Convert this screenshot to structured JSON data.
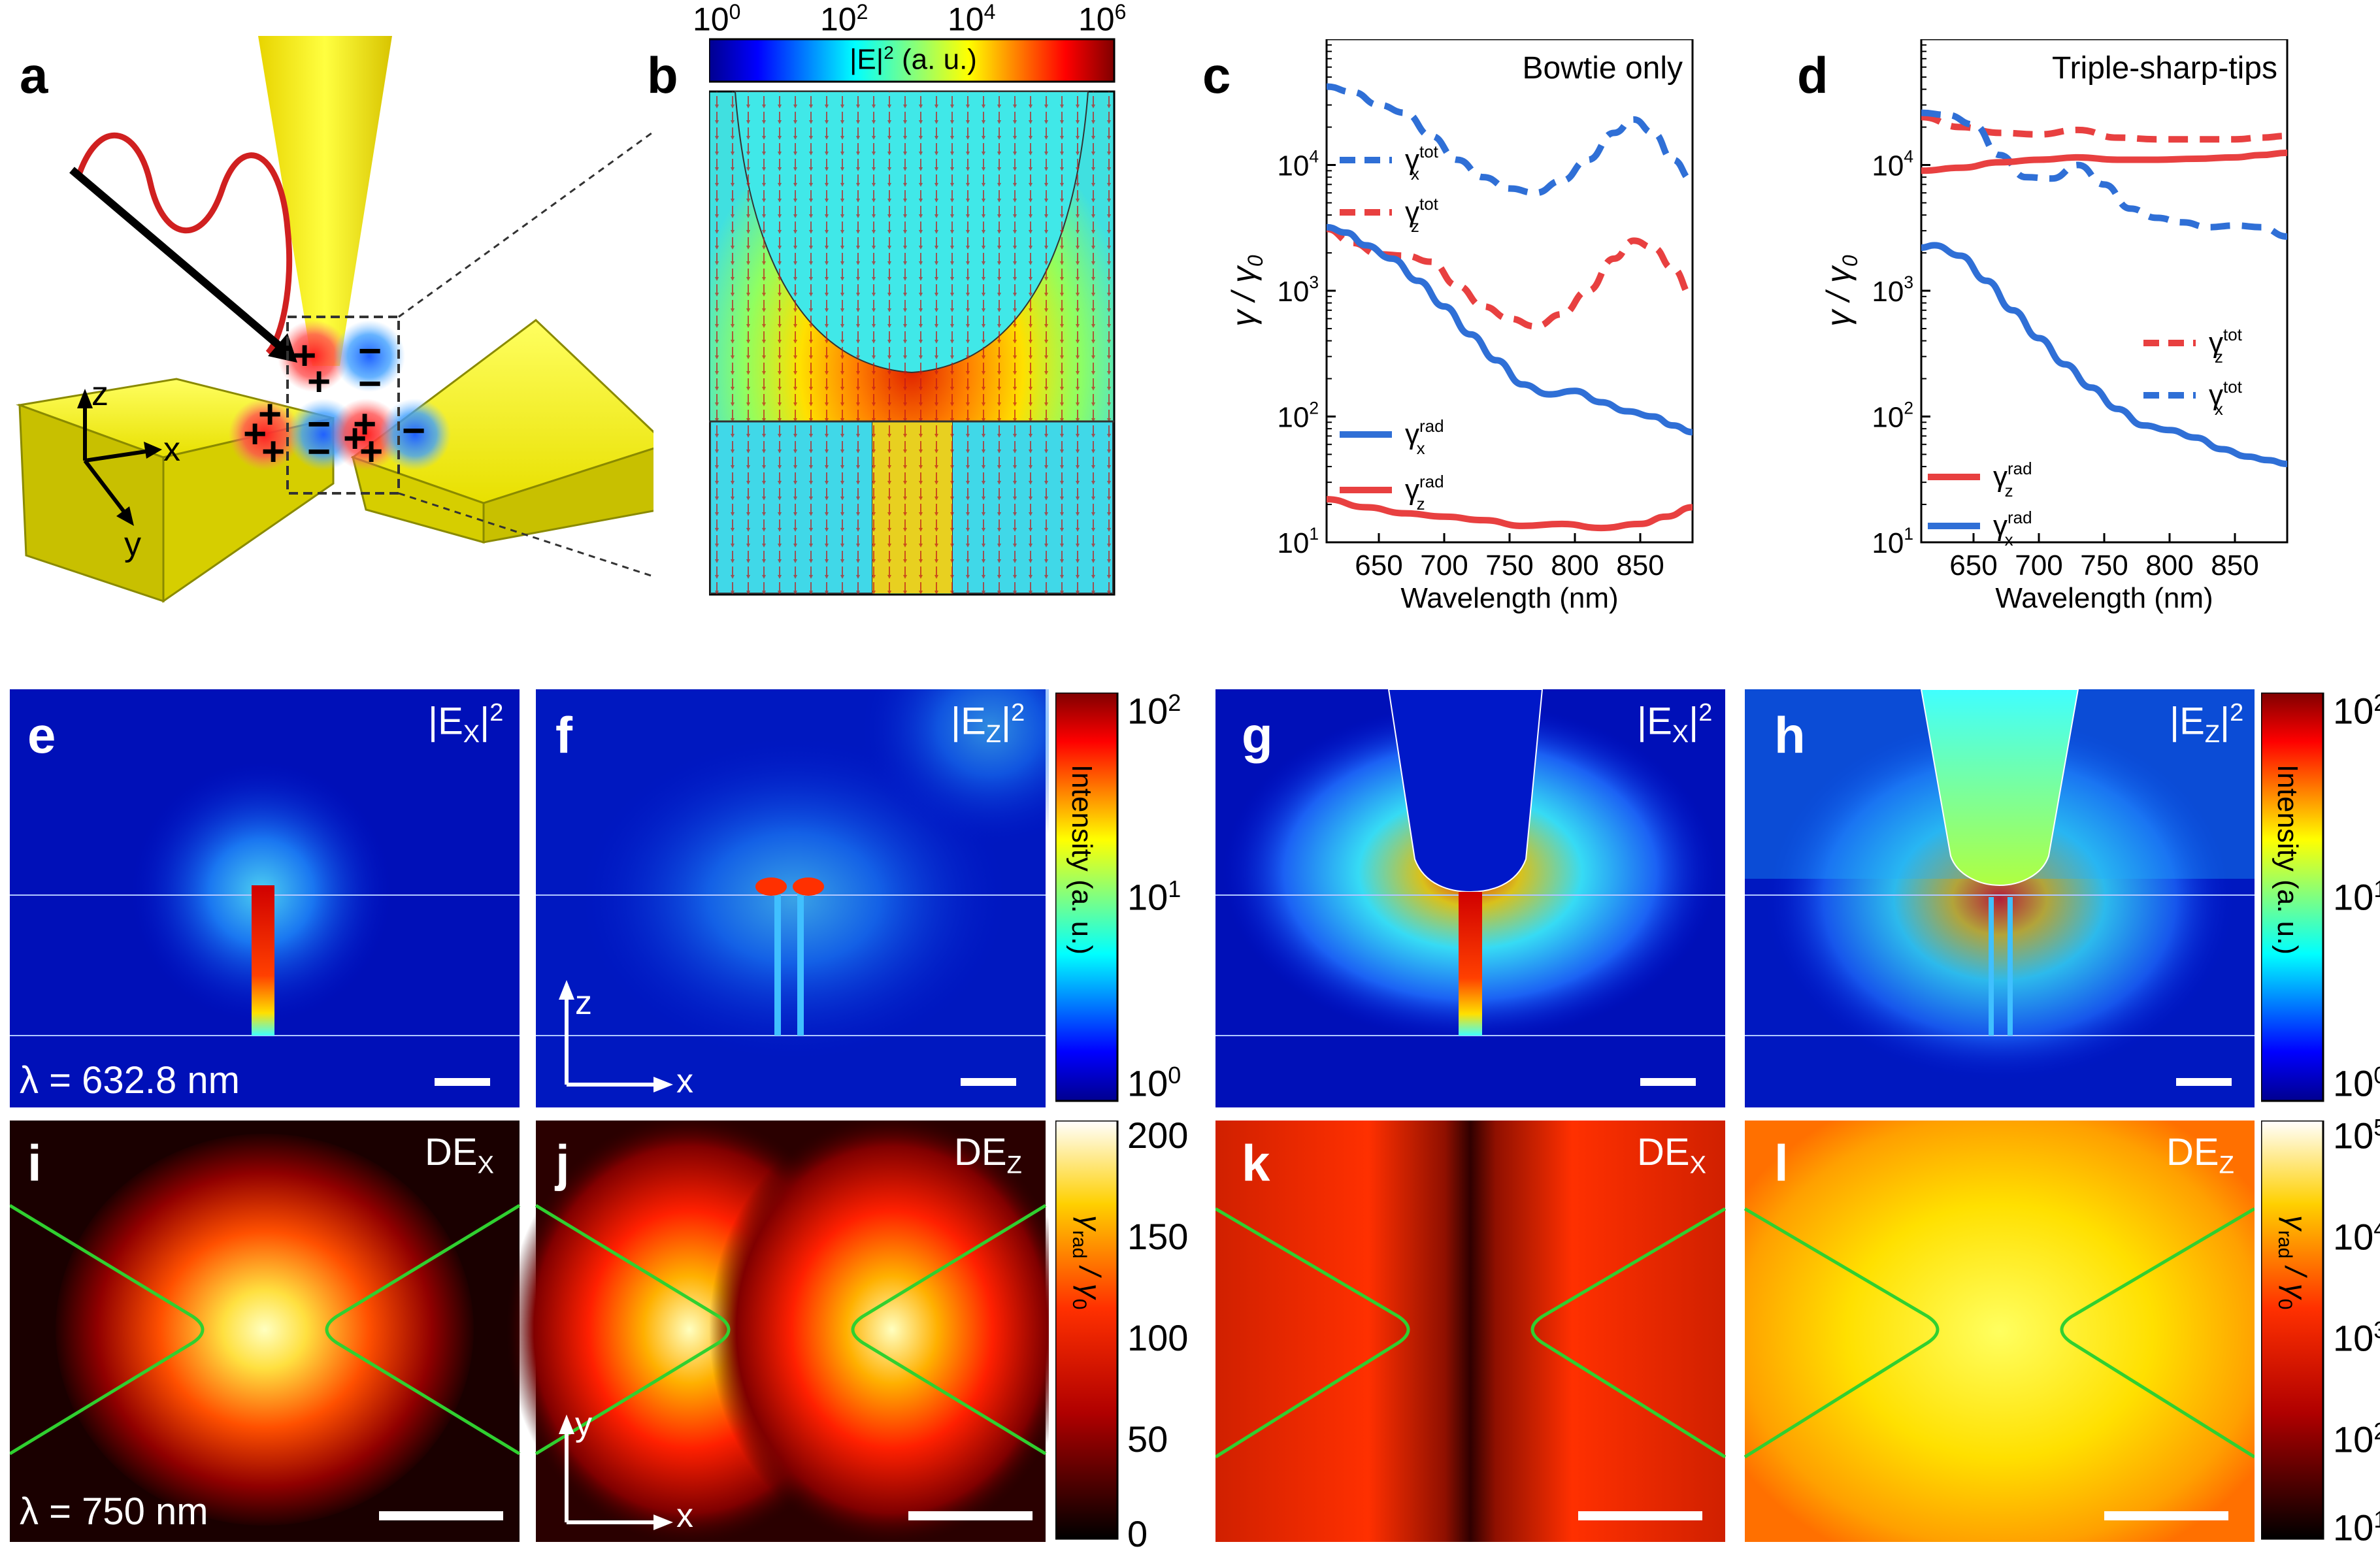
{
  "figure": {
    "panel_labels": {
      "a": "a",
      "b": "b",
      "c": "c",
      "d": "d",
      "e": "e",
      "f": "f",
      "g": "g",
      "h": "h",
      "i": "i",
      "j": "j",
      "k": "k",
      "l": "l"
    }
  },
  "panel_a": {
    "axis_z": "z",
    "axis_x": "x",
    "axis_y": "y",
    "plus": "+",
    "minus": "−"
  },
  "panel_b": {
    "cbar_ticks": [
      "10",
      "10",
      "10",
      "10"
    ],
    "cbar_exps": [
      "0",
      "2",
      "4",
      "6"
    ],
    "cbar_label": "|E|",
    "cbar_label_exp": "2",
    "cbar_label_unit": " (a. u.)"
  },
  "panel_c": {
    "title": "Bowtie only",
    "ylabel": "γ / γ",
    "ylabel_sub": "0",
    "xlabel": "Wavelength (nm)",
    "legend": {
      "x_tot": "γ",
      "z_tot": "γ",
      "x_rad": "γ",
      "z_rad": "γ",
      "sup_tot": "tot",
      "sup_rad": "rad",
      "sub_x": "x",
      "sub_z": "z"
    }
  },
  "panel_d": {
    "title": "Triple-sharp-tips",
    "ylabel": "γ / γ",
    "ylabel_sub": "0",
    "xlabel": "Wavelength (nm)"
  },
  "chart_data": [
    {
      "type": "line",
      "title": "Bowtie only",
      "xlabel": "Wavelength (nm)",
      "ylabel": "γ / γ0",
      "xlim": [
        610,
        890
      ],
      "ylim": [
        10,
        100000
      ],
      "yscale": "log",
      "x_ticks": [
        650,
        700,
        750,
        800,
        850
      ],
      "y_ticks": [
        {
          "base": "10",
          "exp": "1"
        },
        {
          "base": "10",
          "exp": "2"
        },
        {
          "base": "10",
          "exp": "3"
        },
        {
          "base": "10",
          "exp": "4"
        }
      ],
      "series": [
        {
          "name": "γx tot",
          "style": "dashed",
          "color": "#2f6fd6",
          "x": [
            610,
            630,
            650,
            670,
            690,
            710,
            730,
            750,
            770,
            790,
            810,
            830,
            845,
            860,
            875,
            890
          ],
          "values": [
            42000,
            38000,
            30000,
            26000,
            17000,
            11000,
            8000,
            6500,
            6000,
            7500,
            11000,
            18000,
            23000,
            18000,
            11000,
            7500
          ]
        },
        {
          "name": "γz tot",
          "style": "dashed",
          "color": "#e84040",
          "x": [
            610,
            630,
            650,
            670,
            690,
            710,
            730,
            750,
            770,
            790,
            810,
            830,
            845,
            860,
            875,
            890
          ],
          "values": [
            3100,
            2400,
            1950,
            1900,
            1700,
            1100,
            750,
            600,
            520,
            650,
            1000,
            1800,
            2500,
            2200,
            1500,
            900
          ]
        },
        {
          "name": "γx rad",
          "style": "solid",
          "color": "#2f6fd6",
          "x": [
            610,
            625,
            640,
            660,
            680,
            700,
            720,
            740,
            760,
            780,
            800,
            820,
            840,
            860,
            875,
            890
          ],
          "values": [
            3200,
            2900,
            2300,
            1800,
            1200,
            750,
            450,
            280,
            180,
            150,
            160,
            130,
            110,
            100,
            85,
            75
          ]
        },
        {
          "name": "γz rad",
          "style": "solid",
          "color": "#e84040",
          "x": [
            610,
            640,
            670,
            700,
            730,
            760,
            790,
            820,
            850,
            870,
            890
          ],
          "values": [
            22,
            19,
            17,
            16,
            15,
            13.5,
            14,
            13,
            14,
            16,
            19
          ]
        }
      ]
    },
    {
      "type": "line",
      "title": "Triple-sharp-tips",
      "xlabel": "Wavelength (nm)",
      "ylabel": "γ / γ0",
      "xlim": [
        610,
        890
      ],
      "ylim": [
        10,
        100000
      ],
      "yscale": "log",
      "x_ticks": [
        650,
        700,
        750,
        800,
        850
      ],
      "y_ticks": [
        {
          "base": "10",
          "exp": "1"
        },
        {
          "base": "10",
          "exp": "2"
        },
        {
          "base": "10",
          "exp": "3"
        },
        {
          "base": "10",
          "exp": "4"
        }
      ],
      "series": [
        {
          "name": "γz tot",
          "style": "dashed",
          "color": "#e84040",
          "x": [
            610,
            640,
            670,
            700,
            730,
            760,
            790,
            820,
            850,
            870,
            890
          ],
          "values": [
            24000,
            20000,
            18000,
            17500,
            19000,
            16500,
            16000,
            16000,
            16000,
            16500,
            17000
          ]
        },
        {
          "name": "γx tot",
          "style": "dashed",
          "color": "#2f6fd6",
          "x": [
            610,
            630,
            650,
            670,
            690,
            710,
            730,
            750,
            770,
            790,
            810,
            830,
            850,
            870,
            890
          ],
          "values": [
            26000,
            25000,
            21000,
            12000,
            8000,
            7800,
            10000,
            7000,
            4500,
            3800,
            3500,
            3200,
            3300,
            3200,
            2700
          ]
        },
        {
          "name": "γz rad",
          "style": "solid",
          "color": "#e84040",
          "x": [
            610,
            640,
            670,
            700,
            730,
            760,
            790,
            820,
            850,
            870,
            890
          ],
          "values": [
            9000,
            9500,
            10500,
            11000,
            11500,
            11000,
            11000,
            11200,
            11500,
            12000,
            12500
          ]
        },
        {
          "name": "γx rad",
          "style": "solid",
          "color": "#2f6fd6",
          "x": [
            610,
            620,
            640,
            660,
            680,
            700,
            720,
            740,
            760,
            780,
            800,
            820,
            840,
            860,
            875,
            890
          ],
          "values": [
            2200,
            2300,
            1900,
            1200,
            700,
            420,
            260,
            170,
            115,
            85,
            78,
            68,
            55,
            48,
            45,
            42
          ]
        }
      ],
      "legend": {
        "tot_z": "γ",
        "tot_x": "γ",
        "rad_z": "γ",
        "rad_x": "γ"
      }
    }
  ],
  "maps": {
    "e": {
      "label": "|E",
      "sub": "X",
      "close": "|",
      "sup": "2",
      "lambda": "λ = 632.8 nm"
    },
    "f": {
      "label": "|E",
      "sub": "Z",
      "close": "|",
      "sup": "2",
      "axis_z": "z",
      "axis_x": "x"
    },
    "g": {
      "label": "|E",
      "sub": "X",
      "close": "|",
      "sup": "2"
    },
    "h": {
      "label": "|E",
      "sub": "Z",
      "close": "|",
      "sup": "2"
    },
    "cbar_intensity": {
      "top": "10",
      "top_exp": "2",
      "mid": "10",
      "mid_exp": "1",
      "bot": "10",
      "bot_exp": "0",
      "label": "Intensity (a. u.)"
    },
    "i": {
      "label": "DE",
      "sub": "X",
      "lambda": "λ = 750 nm"
    },
    "j": {
      "label": "DE",
      "sub": "Z",
      "axis_y": "y",
      "axis_x": "x"
    },
    "k": {
      "label": "DE",
      "sub": "X"
    },
    "l": {
      "label": "DE",
      "sub": "Z"
    },
    "cbar_linear": {
      "ticks": [
        "200",
        "150",
        "100",
        "50",
        "0"
      ],
      "label": "γ",
      "label_sub": "rad",
      "label_tail": " / γ",
      "label_sub2": "0"
    },
    "cbar_log": {
      "ticks": [
        "10",
        "10",
        "10",
        "10",
        "10"
      ],
      "exps": [
        "5",
        "4",
        "3",
        "2",
        "1"
      ],
      "label": "γ",
      "label_sub": "rad",
      "label_tail": " / γ",
      "label_sub2": "0"
    }
  }
}
